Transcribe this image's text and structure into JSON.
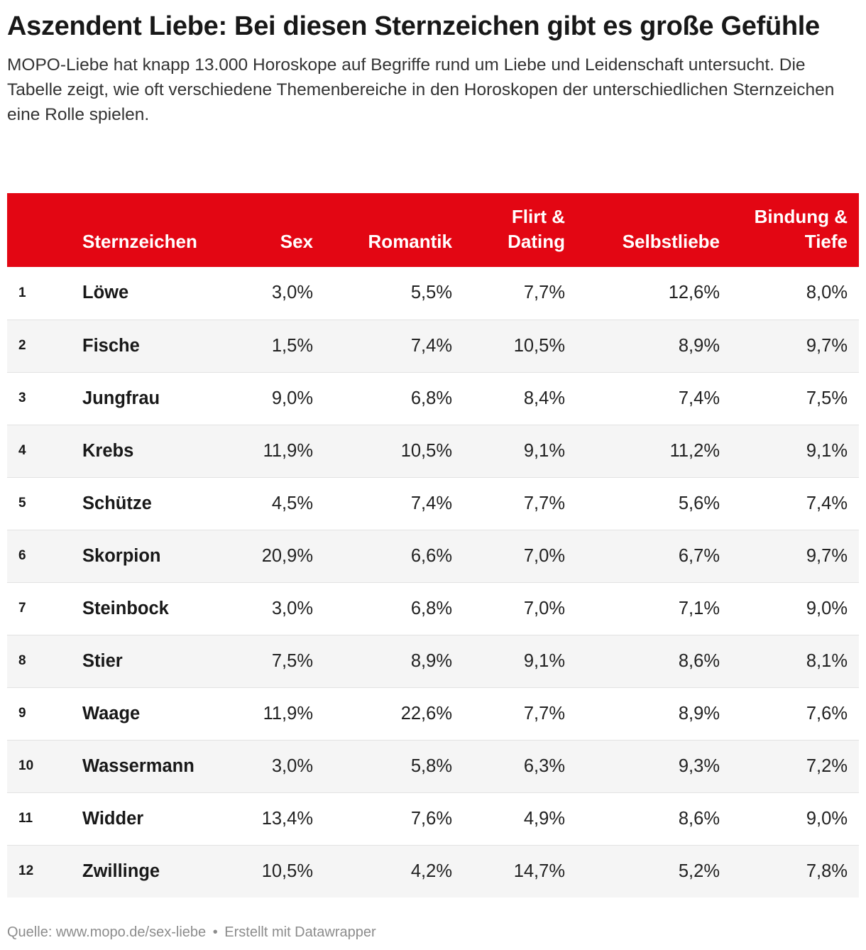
{
  "header": {
    "title": "Aszendent Liebe: Bei diesen Sternzeichen gibt es große Gefühle",
    "subtitle": "MOPO-Liebe hat knapp 13.000 Horoskope auf Begriffe rund um Liebe und Leidenschaft untersucht. Die Tabelle zeigt, wie oft verschiedene Themenbereiche in den Horoskopen der unterschiedlichen Sternzeichen eine Rolle spielen."
  },
  "colors": {
    "header_background": "#e30613",
    "header_text": "#ffffff",
    "stripe_background": "#f5f5f5"
  },
  "chart_data": {
    "type": "table",
    "columns": [
      "",
      "Sternzeichen",
      "Sex",
      "Romantik",
      "Flirt & Dating",
      "Selbstliebe",
      "Bindung & Tiefe"
    ],
    "rows": [
      [
        "1",
        "Löwe",
        "3,0%",
        "5,5%",
        "7,7%",
        "12,6%",
        "8,0%"
      ],
      [
        "2",
        "Fische",
        "1,5%",
        "7,4%",
        "10,5%",
        "8,9%",
        "9,7%"
      ],
      [
        "3",
        "Jungfrau",
        "9,0%",
        "6,8%",
        "8,4%",
        "7,4%",
        "7,5%"
      ],
      [
        "4",
        "Krebs",
        "11,9%",
        "10,5%",
        "9,1%",
        "11,2%",
        "9,1%"
      ],
      [
        "5",
        "Schütze",
        "4,5%",
        "7,4%",
        "7,7%",
        "5,6%",
        "7,4%"
      ],
      [
        "6",
        "Skorpion",
        "20,9%",
        "6,6%",
        "7,0%",
        "6,7%",
        "9,7%"
      ],
      [
        "7",
        "Steinbock",
        "3,0%",
        "6,8%",
        "7,0%",
        "7,1%",
        "9,0%"
      ],
      [
        "8",
        "Stier",
        "7,5%",
        "8,9%",
        "9,1%",
        "8,6%",
        "8,1%"
      ],
      [
        "9",
        "Waage",
        "11,9%",
        "22,6%",
        "7,7%",
        "8,9%",
        "7,6%"
      ],
      [
        "10",
        "Wassermann",
        "3,0%",
        "5,8%",
        "6,3%",
        "9,3%",
        "7,2%"
      ],
      [
        "11",
        "Widder",
        "13,4%",
        "7,6%",
        "4,9%",
        "8,6%",
        "9,0%"
      ],
      [
        "12",
        "Zwillinge",
        "10,5%",
        "4,2%",
        "14,7%",
        "5,2%",
        "7,8%"
      ]
    ]
  },
  "footer": {
    "source": "Quelle: www.mopo.de/sex-liebe",
    "separator": "•",
    "credit": "Erstellt mit Datawrapper"
  }
}
